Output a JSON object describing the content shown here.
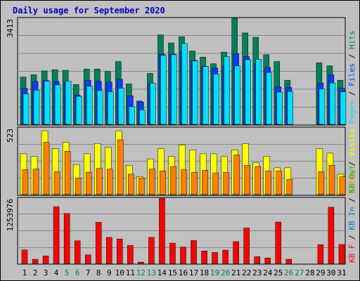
{
  "title": "Daily usage for September 2020",
  "colors": {
    "hits": "#00805c",
    "files": "#0040ff",
    "pages": "#00e0ff",
    "visits": "#ffff00",
    "sites": "#ff8000",
    "kbin": "#0080c0",
    "kbout": "#00c000",
    "kbf": "#ff0000",
    "weekend": "#00805c",
    "weekday": "#000000",
    "panel_bg": "#c0c0c0",
    "panel_border": "#000000",
    "grid": "#000000",
    "title": "#0000c0"
  },
  "chart_data": [
    {
      "type": "bar",
      "panel": "top",
      "ymax_label": "3413",
      "ylim": [
        0,
        3413
      ],
      "grid": true,
      "legend_placement": "right",
      "legend": [
        "Pages",
        "Files",
        "Hits"
      ],
      "categories": [
        "1",
        "2",
        "3",
        "4",
        "5",
        "6",
        "7",
        "8",
        "9",
        "10",
        "11",
        "12",
        "13",
        "14",
        "15",
        "16",
        "17",
        "18",
        "19",
        "20",
        "21",
        "22",
        "23",
        "24",
        "25",
        "26",
        "27",
        "28",
        "29",
        "30",
        "31"
      ],
      "series": [
        {
          "name": "Hits",
          "values": [
            1520,
            1600,
            1720,
            1760,
            1740,
            1280,
            1780,
            1780,
            1700,
            2020,
            1300,
            750,
            1640,
            2880,
            2620,
            2820,
            2360,
            2160,
            1950,
            2320,
            3413,
            2940,
            2800,
            2240,
            2020,
            1420,
            null,
            null,
            1980,
            1880,
            1420
          ]
        },
        {
          "name": "Files",
          "values": [
            1160,
            1380,
            1420,
            1380,
            1350,
            940,
            1420,
            1390,
            1360,
            1450,
            920,
            720,
            1300,
            2260,
            2260,
            2340,
            2060,
            1870,
            1810,
            1870,
            2270,
            2180,
            1940,
            1830,
            1210,
            1190,
            null,
            null,
            1330,
            1590,
            1160
          ]
        },
        {
          "name": "Pages",
          "values": [
            980,
            1100,
            1390,
            1270,
            1390,
            900,
            1230,
            1090,
            1050,
            1160,
            570,
            470,
            1330,
            2220,
            2240,
            2600,
            2040,
            1860,
            1620,
            2180,
            1880,
            2080,
            2090,
            1670,
            1040,
            1060,
            null,
            null,
            1140,
            1330,
            1050
          ]
        }
      ]
    },
    {
      "type": "bar",
      "panel": "middle",
      "ymax_label": "523",
      "ylim": [
        0,
        523
      ],
      "grid": true,
      "legend_placement": "right",
      "legend": [
        "Sites",
        "Visits"
      ],
      "categories": [
        "1",
        "2",
        "3",
        "4",
        "5",
        "6",
        "7",
        "8",
        "9",
        "10",
        "11",
        "12",
        "13",
        "14",
        "15",
        "16",
        "17",
        "18",
        "19",
        "20",
        "21",
        "22",
        "23",
        "24",
        "25",
        "26",
        "27",
        "28",
        "29",
        "30",
        "31"
      ],
      "series": [
        {
          "name": "Visits",
          "values": [
            320,
            300,
            500,
            360,
            410,
            235,
            320,
            400,
            370,
            500,
            230,
            140,
            280,
            360,
            300,
            390,
            350,
            320,
            320,
            300,
            350,
            400,
            250,
            300,
            210,
            210,
            null,
            null,
            360,
            325,
            160
          ]
        },
        {
          "name": "Sites",
          "values": [
            195,
            200,
            410,
            180,
            340,
            130,
            175,
            205,
            200,
            430,
            160,
            130,
            200,
            185,
            220,
            195,
            175,
            190,
            170,
            175,
            310,
            230,
            220,
            185,
            185,
            120,
            null,
            null,
            180,
            230,
            140
          ]
        }
      ]
    },
    {
      "type": "bar",
      "panel": "bottom",
      "ymax_label": "1253976",
      "ylim": [
        0,
        1253976
      ],
      "grid": true,
      "legend_placement": "right",
      "legend": [
        "KB F",
        "KB In",
        "KB Out"
      ],
      "categories": [
        "1",
        "2",
        "3",
        "4",
        "5",
        "6",
        "7",
        "8",
        "9",
        "10",
        "11",
        "12",
        "13",
        "14",
        "15",
        "16",
        "17",
        "18",
        "19",
        "20",
        "21",
        "22",
        "23",
        "24",
        "25",
        "26",
        "27",
        "28",
        "29",
        "30",
        "31"
      ],
      "series": [
        {
          "name": "KB F",
          "values": [
            260000,
            80000,
            145000,
            1090000,
            960000,
            435000,
            165000,
            790000,
            500000,
            470000,
            345000,
            25000,
            500000,
            1250000,
            390000,
            315000,
            440000,
            240000,
            210000,
            255000,
            420000,
            680000,
            130000,
            105000,
            795000,
            80000,
            null,
            null,
            360000,
            1080000,
            365000
          ]
        }
      ]
    }
  ],
  "x_axis_labels": [
    "1",
    "2",
    "3",
    "4",
    "5",
    "6",
    "7",
    "8",
    "9",
    "10",
    "11",
    "12",
    "13",
    "14",
    "15",
    "16",
    "17",
    "18",
    "19",
    "20",
    "21",
    "22",
    "23",
    "24",
    "25",
    "26",
    "27",
    "28",
    "29",
    "30",
    "31"
  ],
  "weekend_days": [
    5,
    6,
    12,
    13,
    19,
    20,
    26,
    27
  ],
  "right_labels": {
    "top": [
      {
        "text": "Pages",
        "color": "#00e0ff"
      },
      {
        "text": " / ",
        "color": "#000000"
      },
      {
        "text": "Files",
        "color": "#0040ff"
      },
      {
        "text": " / ",
        "color": "#000000"
      },
      {
        "text": "Hits",
        "color": "#00805c"
      }
    ],
    "middle": [
      {
        "text": "Sites",
        "color": "#ff8000"
      },
      {
        "text": " / ",
        "color": "#000000"
      },
      {
        "text": "Visits",
        "color": "#ffff00"
      }
    ],
    "bottom": [
      {
        "text": "KB F",
        "color": "#ff0000"
      },
      {
        "text": " / ",
        "color": "#000000"
      },
      {
        "text": "KB In",
        "color": "#0080c0"
      },
      {
        "text": " / ",
        "color": "#000000"
      },
      {
        "text": "KB Out",
        "color": "#00c000"
      }
    ]
  }
}
